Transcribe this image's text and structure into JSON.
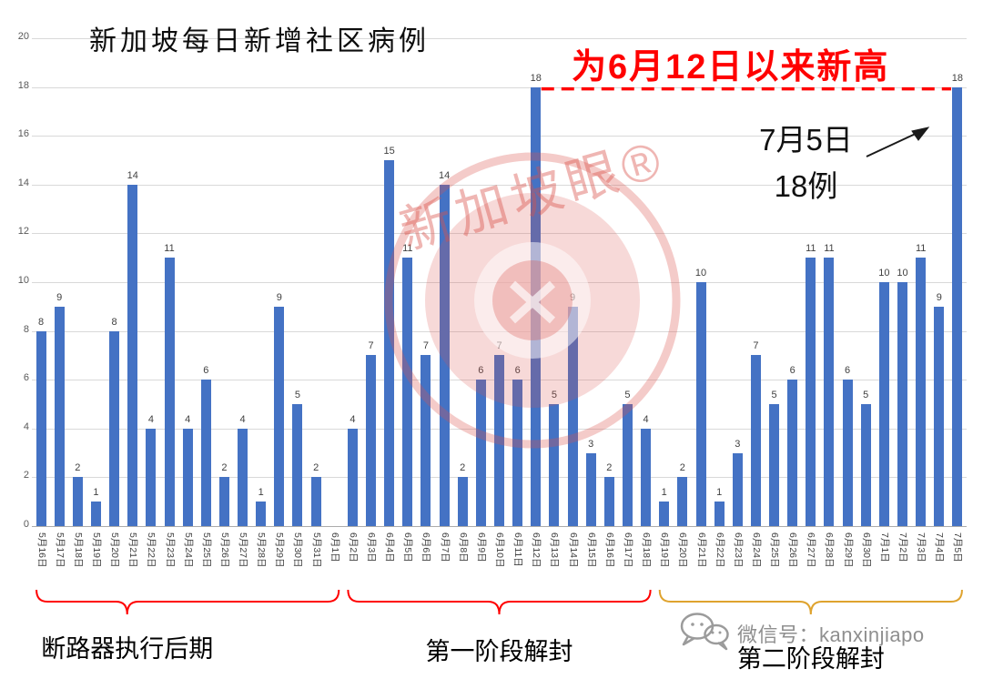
{
  "annotations": {
    "record_note": "为6月12日以来新高",
    "callout_date": "7月5日",
    "callout_value": "18例"
  },
  "watermark": {
    "brand": "新加坡眼®",
    "wechat_label": "微信号：kanxinjiapo"
  },
  "phases": [
    {
      "label": "断路器执行后期",
      "start_index": 0,
      "end_index": 16,
      "color": "#ff0000"
    },
    {
      "label": "第一阶段解封",
      "start_index": 17,
      "end_index": 33,
      "color": "#ff0000"
    },
    {
      "label": "第二阶段解封",
      "start_index": 34,
      "end_index": 50,
      "color": "#dfa32e"
    }
  ],
  "chart_data": {
    "type": "bar",
    "title": "新加坡每日新增社区病例",
    "xlabel": "",
    "ylabel": "",
    "ylim": [
      0,
      20
    ],
    "ytick_step": 2,
    "grid": true,
    "bar_color": "#4472c4",
    "categories": [
      "5月16日",
      "5月17日",
      "5月18日",
      "5月19日",
      "5月20日",
      "5月21日",
      "5月22日",
      "5月23日",
      "5月24日",
      "5月25日",
      "5月26日",
      "5月27日",
      "5月28日",
      "5月29日",
      "5月30日",
      "5月31日",
      "6月1日",
      "6月2日",
      "6月3日",
      "6月4日",
      "6月5日",
      "6月6日",
      "6月7日",
      "6月8日",
      "6月9日",
      "6月10日",
      "6月11日",
      "6月12日",
      "6月13日",
      "6月14日",
      "6月15日",
      "6月16日",
      "6月17日",
      "6月18日",
      "6月19日",
      "6月20日",
      "6月21日",
      "6月22日",
      "6月23日",
      "6月24日",
      "6月25日",
      "6月26日",
      "6月27日",
      "6月28日",
      "6月29日",
      "6月30日",
      "7月1日",
      "7月2日",
      "7月3日",
      "7月4日",
      "7月5日"
    ],
    "values": [
      8,
      9,
      2,
      1,
      8,
      14,
      4,
      11,
      4,
      6,
      2,
      4,
      1,
      9,
      5,
      2,
      0,
      4,
      7,
      15,
      11,
      7,
      14,
      2,
      6,
      7,
      6,
      18,
      5,
      9,
      3,
      2,
      5,
      4,
      1,
      2,
      10,
      1,
      3,
      7,
      5,
      6,
      11,
      11,
      6,
      5,
      10,
      10,
      11,
      9,
      18
    ],
    "dashed_line": {
      "value": 18,
      "from_category": "6月12日",
      "to_category": "7月5日",
      "color": "#ff0000"
    }
  }
}
